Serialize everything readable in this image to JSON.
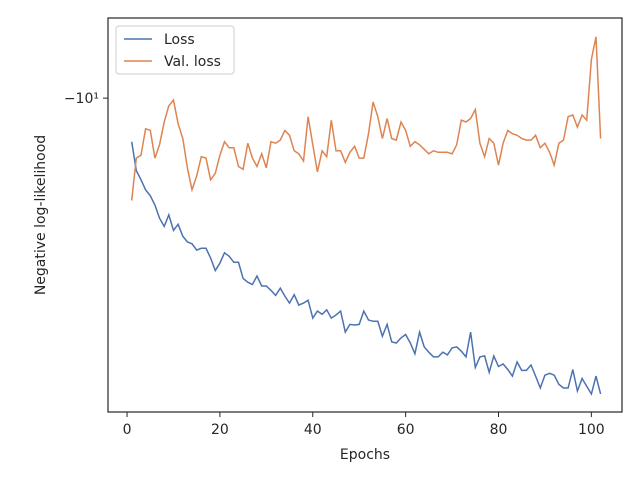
{
  "chart_data": {
    "type": "line",
    "xlabel": "Epochs",
    "ylabel": "Negative log-likelihood",
    "x": [
      1,
      2,
      3,
      4,
      5,
      6,
      7,
      8,
      9,
      10,
      11,
      12,
      13,
      14,
      15,
      16,
      17,
      18,
      19,
      20,
      21,
      22,
      23,
      24,
      25,
      26,
      27,
      28,
      29,
      30,
      31,
      32,
      33,
      34,
      35,
      36,
      37,
      38,
      39,
      40,
      41,
      42,
      43,
      44,
      45,
      46,
      47,
      48,
      49,
      50,
      51,
      52,
      53,
      54,
      55,
      56,
      57,
      58,
      59,
      60,
      61,
      62,
      63,
      64,
      65,
      66,
      67,
      68,
      69,
      70,
      71,
      72,
      73,
      74,
      75,
      76,
      77,
      78,
      79,
      80,
      81,
      82,
      83,
      84,
      85,
      86,
      87,
      88,
      89,
      90,
      91,
      92,
      93,
      94,
      95,
      96,
      97,
      98,
      99,
      100,
      101,
      102
    ],
    "series": [
      {
        "name": "Loss",
        "color": "#4c72b0",
        "values": [
          -12.5,
          -14.5,
          -15.2,
          -16.0,
          -16.5,
          -17.3,
          -18.5,
          -19.3,
          -18.2,
          -19.7,
          -19.1,
          -20.3,
          -20.9,
          -21.1,
          -21.8,
          -21.6,
          -21.6,
          -22.7,
          -24.2,
          -23.3,
          -22.1,
          -22.5,
          -23.2,
          -23.2,
          -25.2,
          -25.7,
          -26.0,
          -24.9,
          -26.2,
          -26.2,
          -26.8,
          -27.5,
          -26.5,
          -27.6,
          -28.6,
          -27.4,
          -28.9,
          -28.6,
          -28.2,
          -30.9,
          -29.8,
          -30.3,
          -29.6,
          -30.9,
          -30.4,
          -29.8,
          -33.2,
          -31.9,
          -32.0,
          -31.9,
          -29.8,
          -31.2,
          -31.4,
          -31.4,
          -33.9,
          -31.9,
          -34.9,
          -35.1,
          -34.2,
          -33.6,
          -35.1,
          -37.1,
          -33.2,
          -35.8,
          -36.8,
          -37.7,
          -37.7,
          -36.8,
          -37.3,
          -36.0,
          -35.8,
          -36.6,
          -37.7,
          -33.2,
          -39.8,
          -37.7,
          -37.5,
          -40.8,
          -37.5,
          -39.6,
          -39.1,
          -40.2,
          -41.6,
          -38.7,
          -40.4,
          -40.4,
          -39.3,
          -41.6,
          -44.2,
          -41.4,
          -41.0,
          -41.4,
          -43.4,
          -44.2,
          -44.2,
          -40.2,
          -44.9,
          -42.1,
          -43.8,
          -45.6,
          -41.6,
          -45.6
        ]
      },
      {
        "name": "Val. loss",
        "color": "#dd8452",
        "values": [
          -16.9,
          -13.6,
          -13.4,
          -11.7,
          -11.8,
          -13.6,
          -12.7,
          -11.3,
          -10.4,
          -10.1,
          -11.4,
          -12.3,
          -14.3,
          -16.0,
          -14.9,
          -13.5,
          -13.6,
          -15.2,
          -14.7,
          -13.4,
          -12.5,
          -12.9,
          -12.9,
          -14.2,
          -14.4,
          -12.6,
          -13.6,
          -14.2,
          -13.3,
          -14.3,
          -12.5,
          -12.6,
          -12.4,
          -11.8,
          -12.1,
          -13.1,
          -13.3,
          -13.8,
          -11.0,
          -12.7,
          -14.6,
          -13.1,
          -13.5,
          -11.2,
          -13.1,
          -13.1,
          -13.9,
          -13.2,
          -12.8,
          -13.6,
          -13.6,
          -12.0,
          -10.2,
          -11.0,
          -12.3,
          -11.1,
          -12.3,
          -12.4,
          -11.3,
          -11.8,
          -12.8,
          -12.5,
          -12.7,
          -13.0,
          -13.3,
          -13.1,
          -13.2,
          -13.2,
          -13.2,
          -13.3,
          -12.7,
          -11.2,
          -11.3,
          -11.1,
          -10.6,
          -12.6,
          -13.5,
          -12.3,
          -12.6,
          -14.1,
          -12.6,
          -11.8,
          -12.0,
          -12.1,
          -12.3,
          -12.4,
          -12.4,
          -12.1,
          -12.9,
          -12.6,
          -13.2,
          -14.1,
          -12.6,
          -12.4,
          -11.0,
          -10.9,
          -11.6,
          -10.9,
          -11.2,
          -8.2,
          -7.3,
          -12.3
        ]
      }
    ],
    "xlim": [
      -4.1,
      106.6
    ],
    "xticks": [
      0,
      20,
      40,
      60,
      80,
      100
    ],
    "ylim": [
      -6.63,
      -50
    ],
    "yticks": [
      {
        "value": -10,
        "label": "−10¹"
      }
    ],
    "yscale": "symlog",
    "legend": "upper left"
  }
}
